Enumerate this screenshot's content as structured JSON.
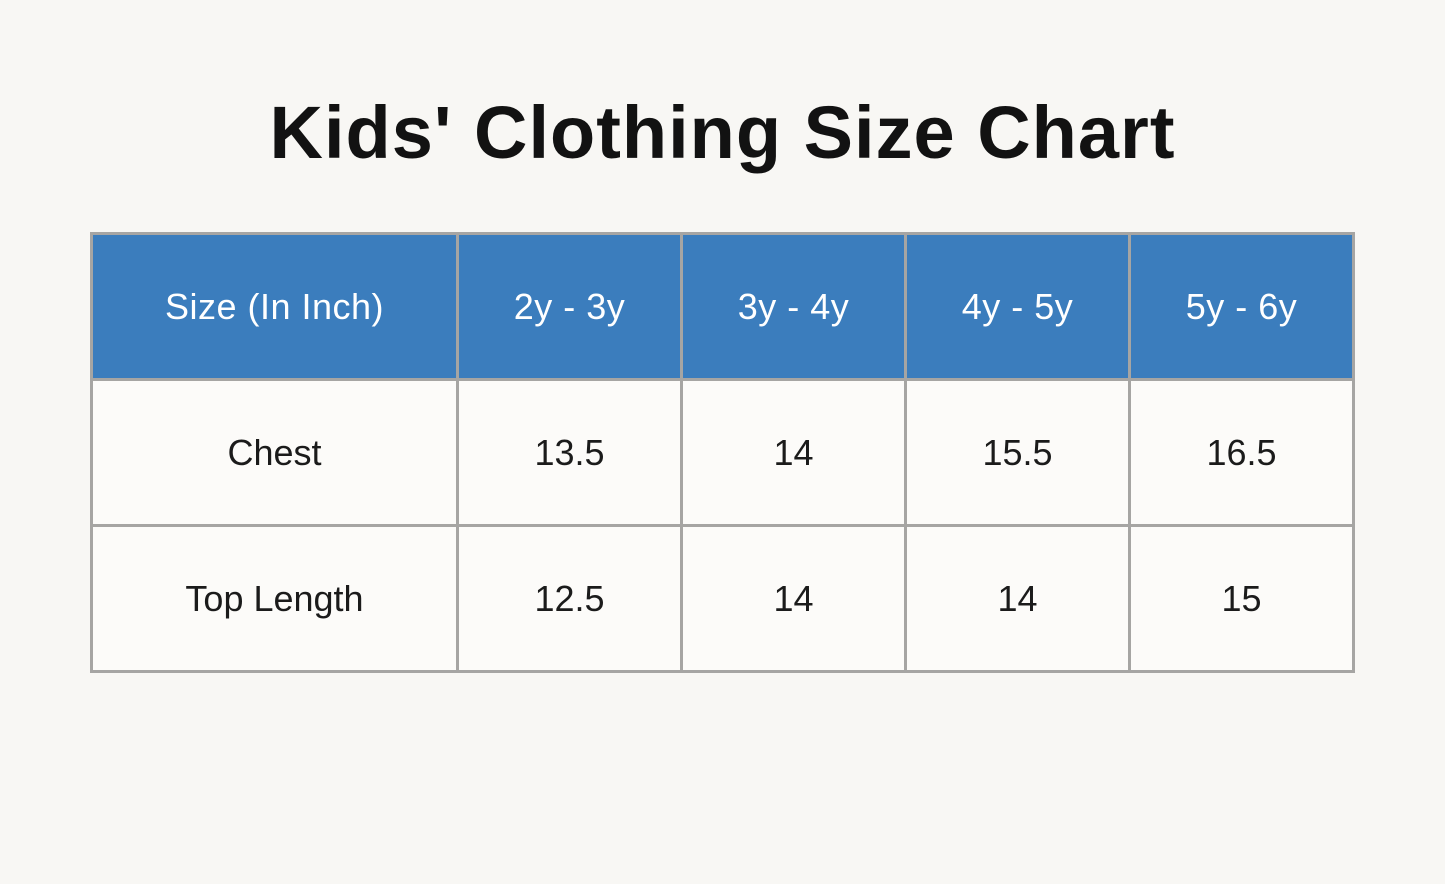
{
  "page": {
    "title": "Kids' Clothing Size Chart"
  },
  "colors": {
    "page_bg": "#f8f7f4",
    "cell_bg": "#fcfbf9",
    "header_bg": "#3b7dbd",
    "header_text": "#ffffff",
    "border": "#a6a5a3",
    "text": "#1b1b1b",
    "title_text": "#121212"
  },
  "chart_data": {
    "type": "table",
    "title": "Kids' Clothing Size Chart",
    "columns": [
      "Size (In Inch)",
      "2y - 3y",
      "3y - 4y",
      "4y - 5y",
      "5y - 6y"
    ],
    "rows": [
      [
        "Chest",
        "13.5",
        "14",
        "15.5",
        "16.5"
      ],
      [
        "Top Length",
        "12.5",
        "14",
        "14",
        "15"
      ]
    ]
  }
}
